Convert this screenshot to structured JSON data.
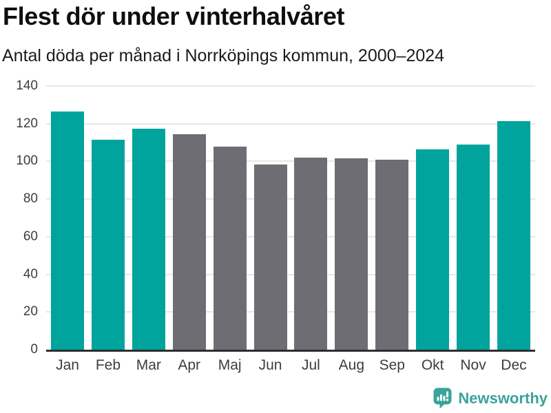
{
  "header": {
    "title": "Flest dör under vinterhalvåret",
    "subtitle": "Antal döda per månad i Norrköpings kommun, 2000–2024"
  },
  "chart_data": {
    "type": "bar",
    "title": "Flest dör under vinterhalvåret",
    "subtitle": "Antal döda per månad i Norrköpings kommun, 2000–2024",
    "categories": [
      "Jan",
      "Feb",
      "Mar",
      "Apr",
      "Maj",
      "Jun",
      "Jul",
      "Aug",
      "Sep",
      "Okt",
      "Nov",
      "Dec"
    ],
    "values": [
      126.5,
      111.5,
      117.5,
      114.5,
      108,
      98.5,
      102,
      101.5,
      101,
      106.5,
      109,
      121.5
    ],
    "highlighted": [
      true,
      true,
      true,
      false,
      false,
      false,
      false,
      false,
      false,
      true,
      true,
      true
    ],
    "highlight_color": "#00a49c",
    "base_color": "#6e6d73",
    "yticks": [
      0,
      20,
      40,
      60,
      80,
      100,
      120,
      140
    ],
    "ylim": [
      0,
      140
    ],
    "xlabel": "",
    "ylabel": "",
    "grid": true,
    "legend": false
  },
  "footer": {
    "brand": "Newsworthy",
    "brand_color": "#3aa39b",
    "logo_icon": "bar-chart-speech-bubble-icon"
  },
  "colors": {
    "background": "#ffffff",
    "title_text": "#0f0f0f",
    "subtitle_text": "#1b1b1b",
    "axis_label_text": "#3d3d3d",
    "gridline": "#e7e7e7",
    "axis_line": "#2d2d2d",
    "bar_teal": "#00a49c",
    "bar_gray": "#6e6d73"
  }
}
